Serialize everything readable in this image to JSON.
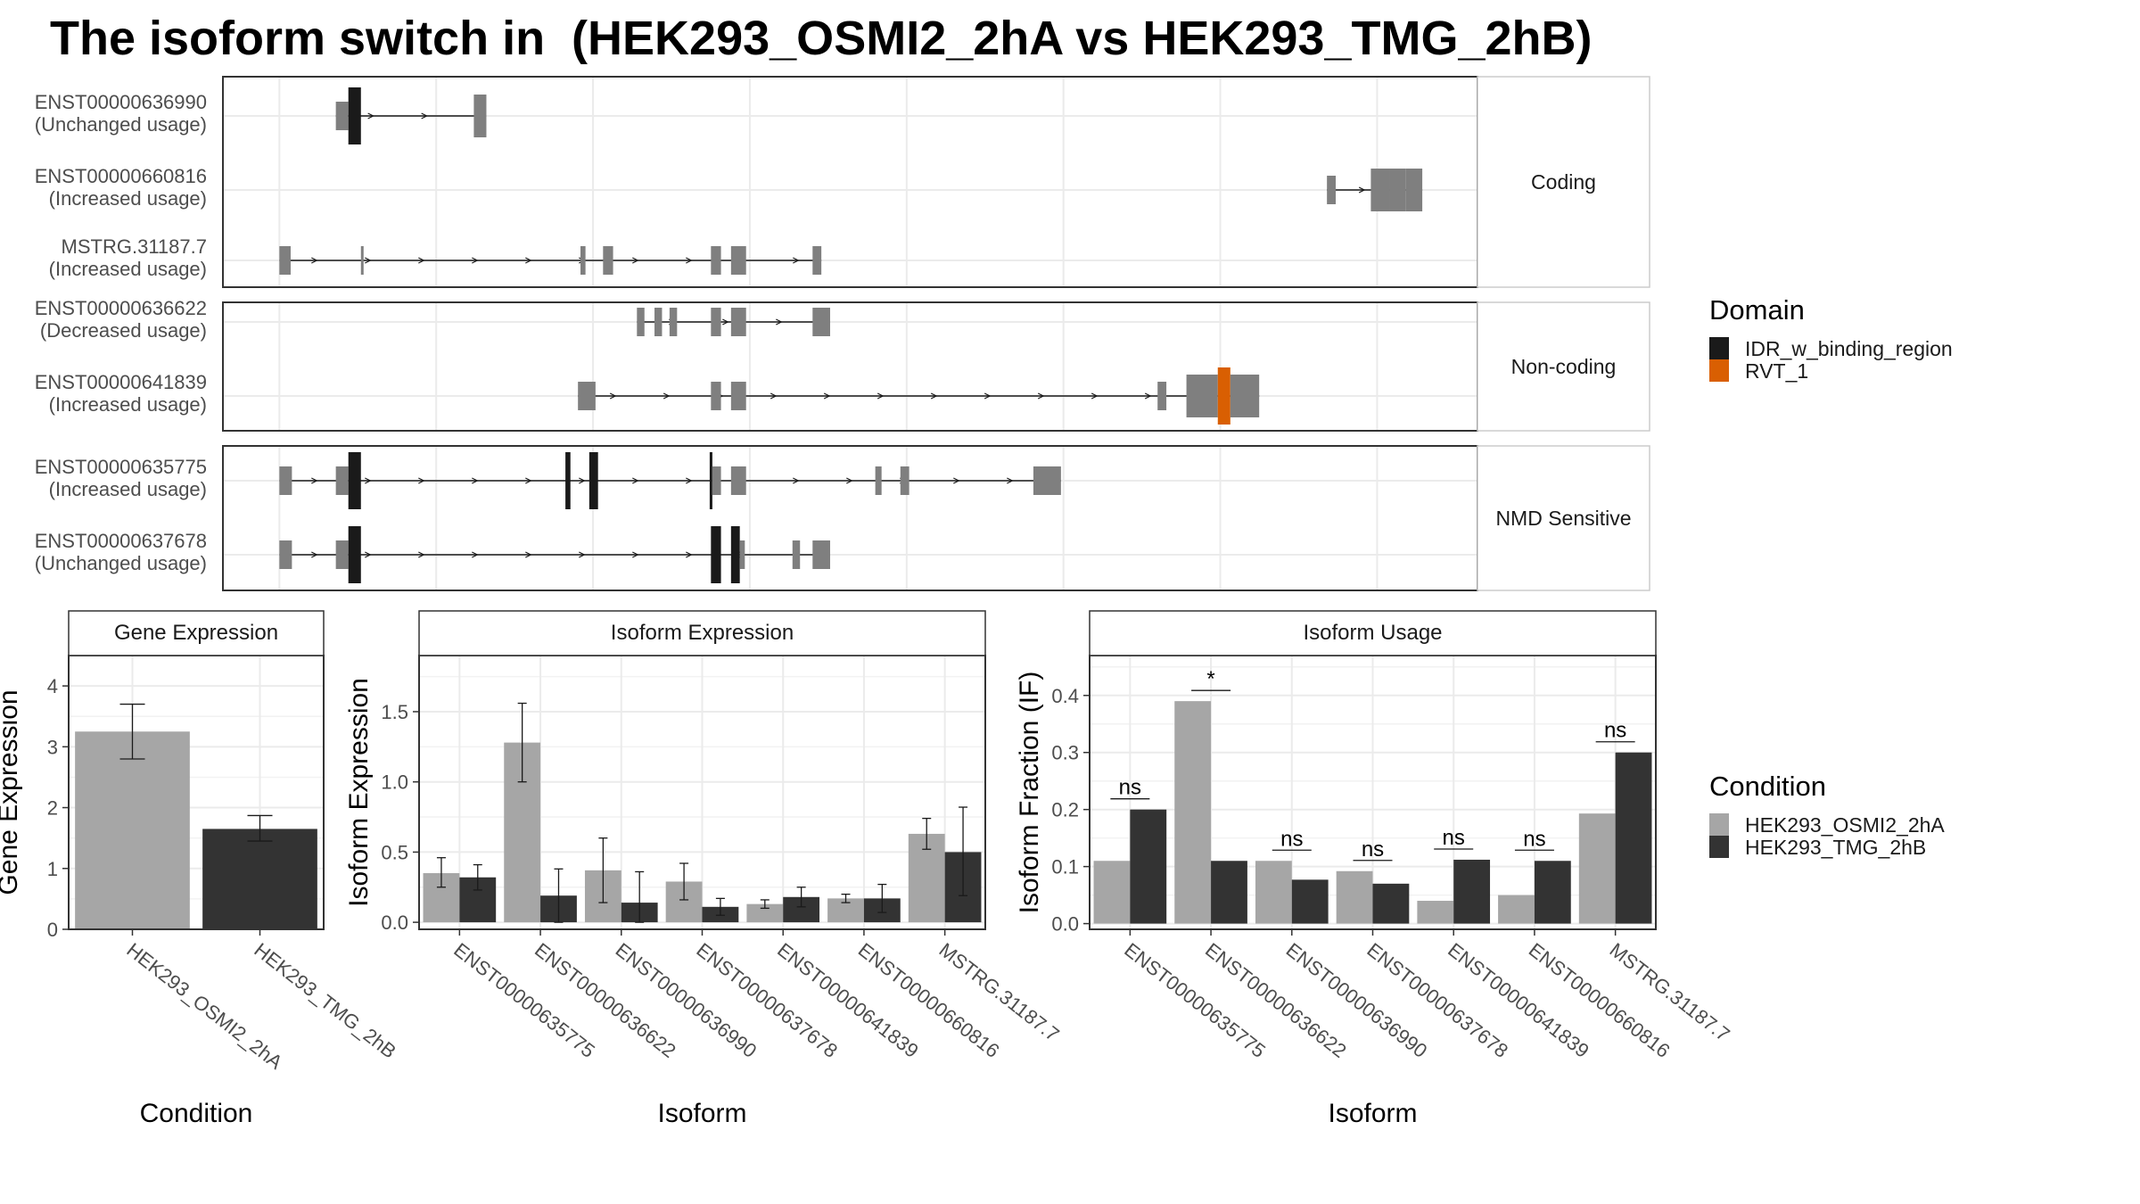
{
  "title": "The isoform switch in  (HEK293_OSMI2_2hA vs HEK293_TMG_2hB)",
  "colors": {
    "intron": "#1a1a1a",
    "exon_plain": "#7f7f7f",
    "domain_idr": "#1a1a1a",
    "domain_rvt": "#d95f02",
    "cond_a": "#a6a6a6",
    "cond_b": "#333333",
    "grid": "#ebebeb",
    "strip_bg": "#ffffff",
    "panel_border": "#333333"
  },
  "transcript_panels": [
    {
      "label": "Coding",
      "transcripts": [
        {
          "id": "ENST00000636990",
          "usage": "(Unchanged usage)",
          "exons": [
            [
              0.09,
              0.1,
              "utr"
            ],
            [
              0.1,
              0.11,
              "idr"
            ],
            [
              0.2,
              0.21,
              "cds"
            ]
          ]
        },
        {
          "id": "ENST00000660816",
          "usage": "(Increased usage)",
          "exons": [
            [
              0.88,
              0.887,
              "utr"
            ],
            [
              0.915,
              0.93,
              "cds"
            ],
            [
              0.93,
              0.943,
              "cds"
            ],
            [
              0.943,
              0.956,
              "cds"
            ]
          ]
        },
        {
          "id": "MSTRG.31187.7",
          "usage": "(Increased usage)",
          "exons": [
            [
              0.045,
              0.054,
              "utr"
            ],
            [
              0.11,
              0.112,
              "utr"
            ],
            [
              0.285,
              0.289,
              "utr"
            ],
            [
              0.303,
              0.311,
              "utr"
            ],
            [
              0.389,
              0.397,
              "utr"
            ],
            [
              0.405,
              0.417,
              "utr"
            ],
            [
              0.47,
              0.477,
              "utr"
            ]
          ]
        }
      ]
    },
    {
      "label": "Non-coding",
      "transcripts": [
        {
          "id": "ENST00000636622",
          "usage": "(Decreased usage)",
          "exons": [
            [
              0.33,
              0.336,
              "utr"
            ],
            [
              0.344,
              0.35,
              "utr"
            ],
            [
              0.356,
              0.362,
              "utr"
            ],
            [
              0.389,
              0.397,
              "utr"
            ],
            [
              0.405,
              0.417,
              "utr"
            ],
            [
              0.47,
              0.484,
              "utr"
            ]
          ]
        },
        {
          "id": "ENST00000641839",
          "usage": "(Increased usage)",
          "exons": [
            [
              0.283,
              0.297,
              "utr"
            ],
            [
              0.389,
              0.397,
              "utr"
            ],
            [
              0.405,
              0.417,
              "utr"
            ],
            [
              0.745,
              0.752,
              "utr"
            ],
            [
              0.768,
              0.793,
              "cds"
            ],
            [
              0.793,
              0.803,
              "rvt"
            ],
            [
              0.803,
              0.826,
              "cds"
            ]
          ]
        }
      ]
    },
    {
      "label": "NMD Sensitive",
      "transcripts": [
        {
          "id": "ENST00000635775",
          "usage": "(Increased usage)",
          "exons": [
            [
              0.045,
              0.055,
              "utr"
            ],
            [
              0.09,
              0.1,
              "utr"
            ],
            [
              0.1,
              0.11,
              "idr"
            ],
            [
              0.273,
              0.277,
              "idr"
            ],
            [
              0.292,
              0.299,
              "idr"
            ],
            [
              0.388,
              0.39,
              "idr"
            ],
            [
              0.39,
              0.397,
              "utr"
            ],
            [
              0.405,
              0.417,
              "utr"
            ],
            [
              0.52,
              0.525,
              "utr"
            ],
            [
              0.54,
              0.547,
              "utr"
            ],
            [
              0.646,
              0.668,
              "utr"
            ]
          ]
        },
        {
          "id": "ENST00000637678",
          "usage": "(Unchanged usage)",
          "exons": [
            [
              0.045,
              0.055,
              "utr"
            ],
            [
              0.09,
              0.1,
              "utr"
            ],
            [
              0.1,
              0.11,
              "idr"
            ],
            [
              0.389,
              0.397,
              "idr"
            ],
            [
              0.405,
              0.412,
              "idr"
            ],
            [
              0.412,
              0.416,
              "utr"
            ],
            [
              0.454,
              0.46,
              "utr"
            ],
            [
              0.47,
              0.484,
              "utr"
            ]
          ]
        }
      ]
    }
  ],
  "domain_legend": {
    "title": "Domain",
    "items": [
      {
        "label": "IDR_w_binding_region",
        "color": "#1a1a1a"
      },
      {
        "label": "RVT_1",
        "color": "#d95f02"
      }
    ]
  },
  "condition_legend": {
    "title": "Condition",
    "items": [
      {
        "label": "HEK293_OSMI2_2hA",
        "color": "#a6a6a6"
      },
      {
        "label": "HEK293_TMG_2hB",
        "color": "#333333"
      }
    ]
  },
  "chart_data": [
    {
      "type": "bar",
      "title": "Gene Expression",
      "xlabel": "Condition",
      "ylabel": "Gene Expression",
      "categories": [
        "HEK293_OSMI2_2hA",
        "HEK293_TMG_2hB"
      ],
      "values": [
        3.25,
        1.65
      ],
      "error_low": [
        2.8,
        1.45
      ],
      "error_high": [
        3.7,
        1.87
      ],
      "ylim": [
        0,
        4.5
      ],
      "yticks": [
        0,
        1,
        2,
        3,
        4
      ],
      "yticklabels": [
        "0",
        "1",
        "2",
        "3",
        "4"
      ],
      "grid": true
    },
    {
      "type": "bar",
      "title": "Isoform Expression",
      "xlabel": "Isoform",
      "ylabel": "Isoform Expression",
      "categories": [
        "ENST00000635775",
        "ENST00000636622",
        "ENST00000636990",
        "ENST00000637678",
        "ENST00000641839",
        "ENST00000660816",
        "MSTRG.31187.7"
      ],
      "series": [
        {
          "name": "HEK293_OSMI2_2hA",
          "values": [
            0.35,
            1.28,
            0.37,
            0.29,
            0.13,
            0.17,
            0.63
          ],
          "error_low": [
            0.25,
            1.0,
            0.14,
            0.16,
            0.1,
            0.14,
            0.52
          ],
          "error_high": [
            0.46,
            1.56,
            0.6,
            0.42,
            0.16,
            0.2,
            0.74
          ]
        },
        {
          "name": "HEK293_TMG_2hB",
          "values": [
            0.32,
            0.19,
            0.14,
            0.11,
            0.18,
            0.17,
            0.5
          ],
          "error_low": [
            0.23,
            0.0,
            0.0,
            0.05,
            0.11,
            0.07,
            0.19
          ],
          "error_high": [
            0.41,
            0.38,
            0.36,
            0.17,
            0.25,
            0.27,
            0.82
          ]
        }
      ],
      "ylim": [
        -0.05,
        1.9
      ],
      "yticks": [
        0,
        0.5,
        1.0,
        1.5
      ],
      "yticklabels": [
        "0.0",
        "0.5",
        "1.0",
        "1.5"
      ],
      "grid": true
    },
    {
      "type": "bar",
      "title": "Isoform Usage",
      "xlabel": "Isoform",
      "ylabel": "Isoform Fraction (IF)",
      "categories": [
        "ENST00000635775",
        "ENST00000636622",
        "ENST00000636990",
        "ENST00000637678",
        "ENST00000641839",
        "ENST00000660816",
        "MSTRG.31187.7"
      ],
      "series": [
        {
          "name": "HEK293_OSMI2_2hA",
          "values": [
            0.11,
            0.39,
            0.11,
            0.092,
            0.04,
            0.05,
            0.193
          ]
        },
        {
          "name": "HEK293_TMG_2hB",
          "values": [
            0.2,
            0.11,
            0.077,
            0.07,
            0.112,
            0.11,
            0.3
          ]
        }
      ],
      "significance": [
        "ns",
        "*",
        "ns",
        "ns",
        "ns",
        "ns",
        "ns"
      ],
      "ylim": [
        -0.01,
        0.47
      ],
      "yticks": [
        0,
        0.1,
        0.2,
        0.3,
        0.4
      ],
      "yticklabels": [
        "0.0",
        "0.1",
        "0.2",
        "0.3",
        "0.4"
      ],
      "grid": true
    }
  ]
}
